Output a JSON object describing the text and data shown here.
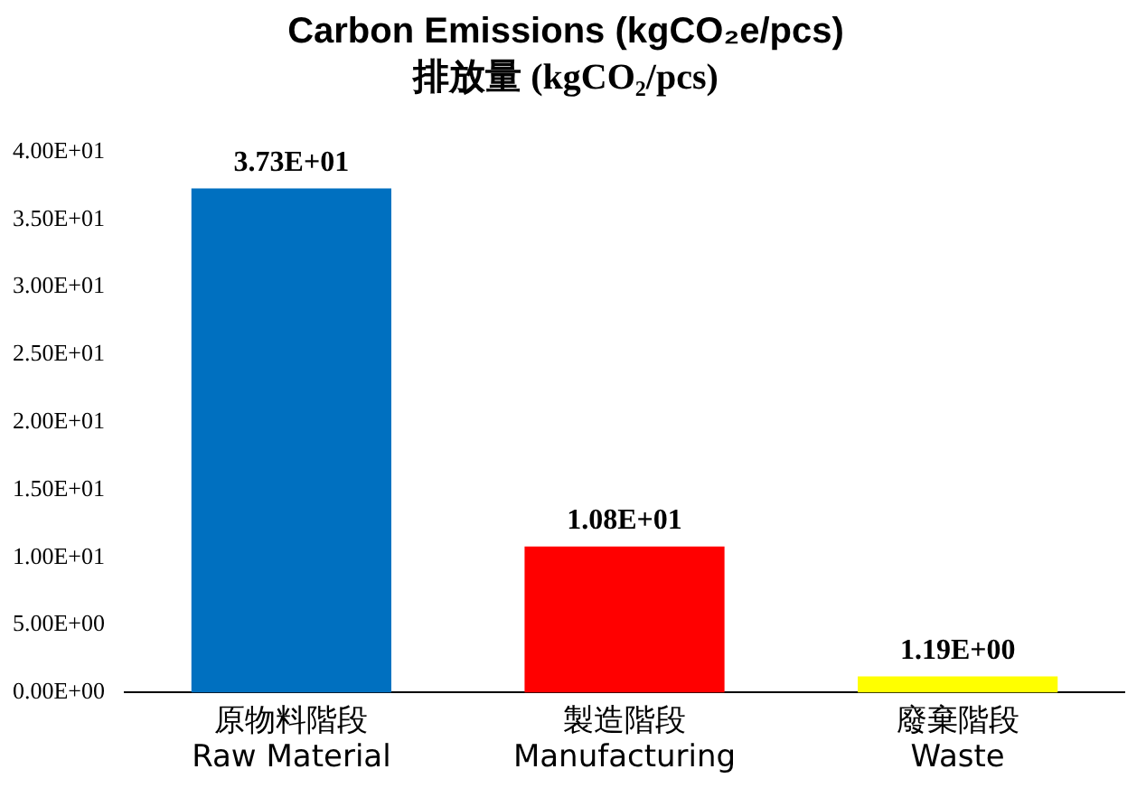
{
  "chart_data": {
    "type": "bar",
    "title": "Carbon Emissions (kgCO₂e/pcs)",
    "subtitle": "排放量 (kgCO₂/pcs)",
    "categories": [
      "原物料階段\nRaw Material",
      "製造階段\nManufacturing",
      "廢棄階段\nWaste"
    ],
    "values": [
      37.3,
      10.8,
      1.19
    ],
    "colors": [
      "#0070c0",
      "#ff0000",
      "#ffff00"
    ],
    "value_labels": [
      "3.73E+01",
      "1.08E+01",
      "1.19E+00"
    ],
    "ylim": [
      0,
      40
    ],
    "yticks": [
      {
        "value": 0,
        "label": "0.00E+00"
      },
      {
        "value": 5,
        "label": "5.00E+00"
      },
      {
        "value": 10,
        "label": "1.00E+01"
      },
      {
        "value": 15,
        "label": "1.50E+01"
      },
      {
        "value": 20,
        "label": "2.00E+01"
      },
      {
        "value": 25,
        "label": "2.50E+01"
      },
      {
        "value": 30,
        "label": "3.00E+01"
      },
      {
        "value": 35,
        "label": "3.50E+01"
      },
      {
        "value": 40,
        "label": "4.00E+01"
      }
    ]
  }
}
